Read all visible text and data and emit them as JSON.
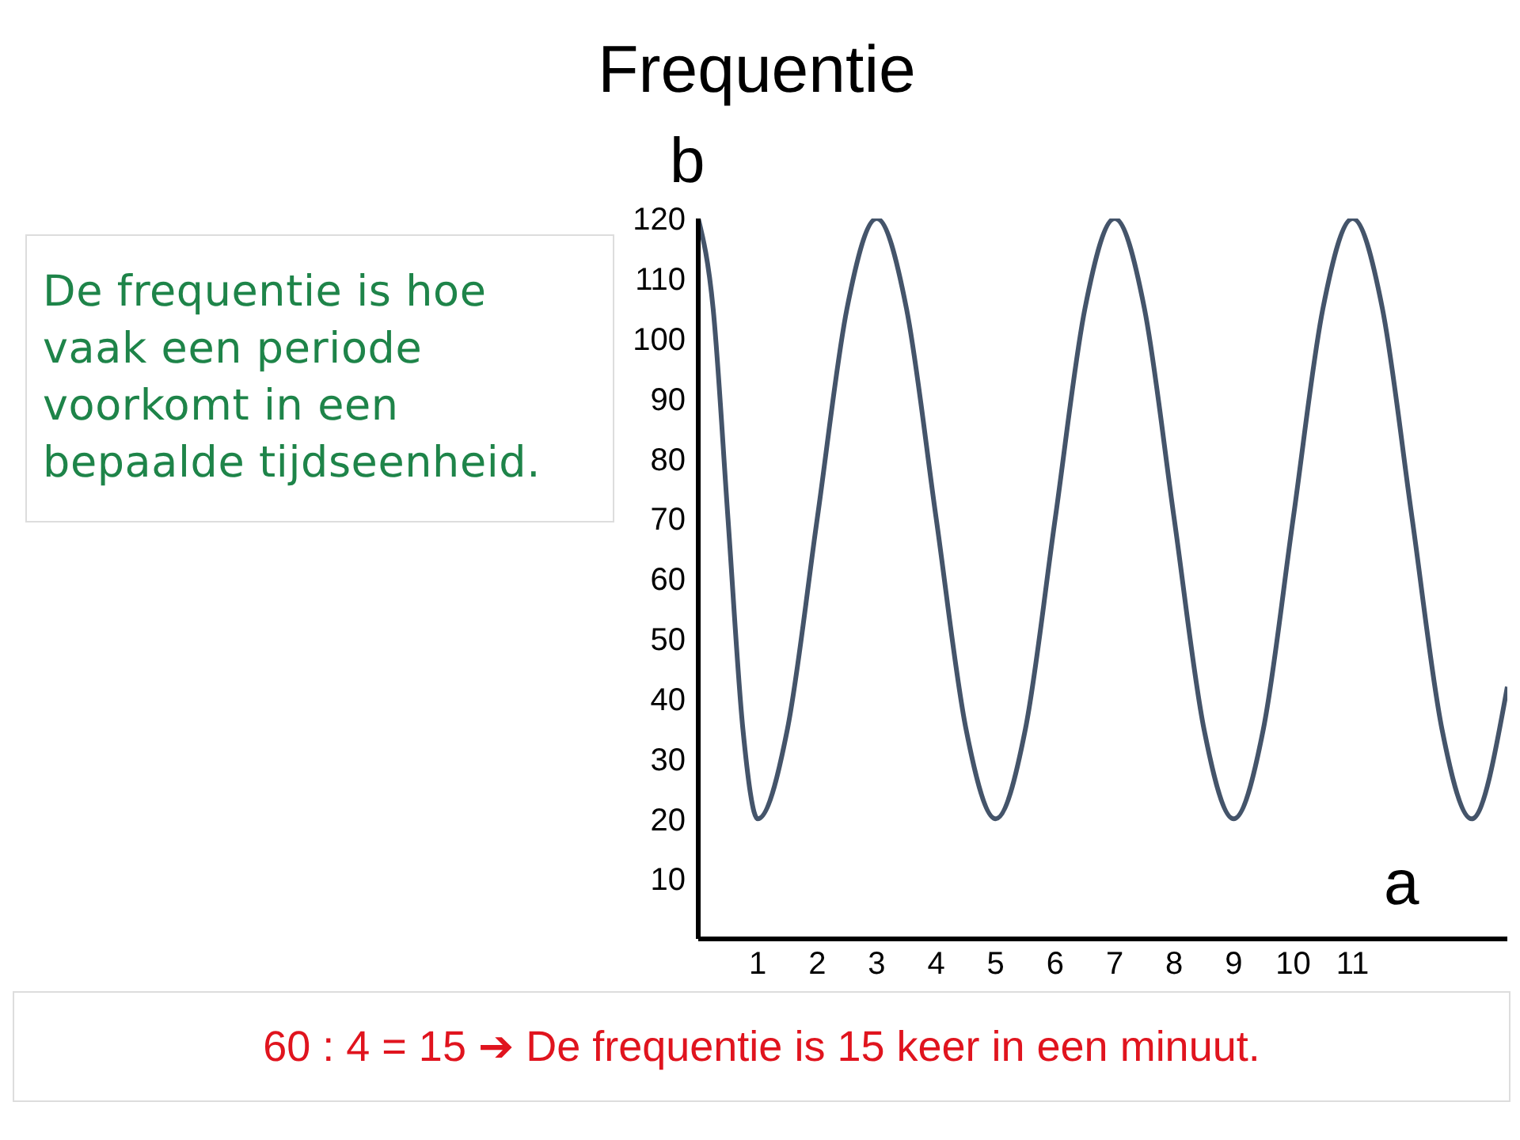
{
  "chart_data": {
    "type": "line",
    "title": "Frequentie",
    "xlabel": "a",
    "ylabel": "b",
    "annotations": [
      "De frequentie is hoe vaak een periode voorkomt in een bepaalde tijdseenheid.",
      "60 : 4 = 15 ➔ De frequentie is 15 keer in een minuut."
    ],
    "x": [
      0,
      0.25,
      0.5,
      0.75,
      1,
      1.5,
      2,
      2.5,
      3,
      3.5,
      4,
      4.5,
      5,
      5.5,
      6,
      6.5,
      7,
      7.5,
      8,
      8.5,
      9,
      9.5,
      10,
      10.5,
      11,
      11.5,
      12,
      12.5,
      13,
      13.6
    ],
    "series": [
      {
        "color": "#44546a",
        "values": [
          120,
          105,
          70,
          35,
          20,
          35,
          70,
          105,
          120,
          105,
          70,
          35,
          20,
          35,
          70,
          105,
          120,
          105,
          70,
          35,
          20,
          35,
          70,
          105,
          120,
          105,
          70,
          35,
          20,
          42
        ]
      }
    ],
    "xlim": [
      0,
      13.6
    ],
    "xticks": [
      1,
      2,
      3,
      4,
      5,
      6,
      7,
      8,
      9,
      10,
      11
    ],
    "ylim": [
      0,
      120
    ],
    "yticks": [
      10,
      20,
      30,
      40,
      50,
      60,
      70,
      80,
      90,
      100,
      110,
      120
    ],
    "grid": false,
    "legend": false,
    "marker": "none",
    "line_style": "solid"
  }
}
